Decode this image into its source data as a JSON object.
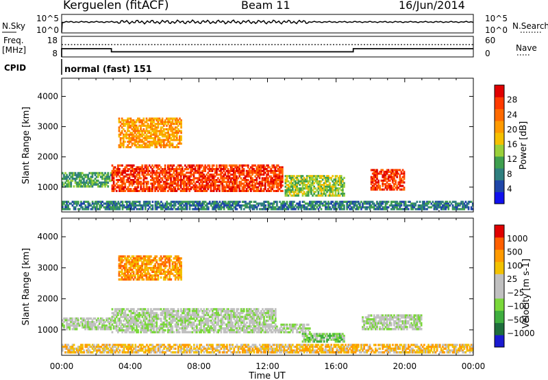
{
  "header": {
    "station": "Kerguelen (fitACF)",
    "beam": "Beam 11",
    "date": "16/Jun/2014"
  },
  "noise_panel": {
    "left_label": "N.Sky",
    "right_label": "N.Search",
    "left_ticks": [
      "10^5",
      "10^0"
    ],
    "right_ticks": [
      "10^5",
      "10^0"
    ]
  },
  "freq_panel": {
    "left_label_1": "Freq.",
    "left_label_2": "[MHz]",
    "right_label": "Nave",
    "left_ticks": [
      "18",
      "8"
    ],
    "right_ticks": [
      "60",
      "0"
    ],
    "freq_series_mhz": [
      {
        "t": 0.0,
        "v": 8
      },
      {
        "t": 0.0,
        "v": 12
      },
      {
        "t": 2.9,
        "v": 12
      },
      {
        "t": 2.9,
        "v": 10.5
      },
      {
        "t": 17.0,
        "v": 10.5
      },
      {
        "t": 17.0,
        "v": 12
      },
      {
        "t": 24.0,
        "v": 12
      }
    ]
  },
  "cpid": {
    "label": "CPID",
    "value": "normal (fast) 151"
  },
  "axes": {
    "ylabel": "Slant Range [km]",
    "xlabel": "Time UT",
    "xticks": [
      "00:00",
      "04:00",
      "08:00",
      "12:00",
      "16:00",
      "20:00",
      "00:00"
    ],
    "yticks": [
      "4000",
      "3000",
      "2000",
      "1000"
    ]
  },
  "chart_data": [
    {
      "type": "heatmap",
      "title": "",
      "xlabel": "",
      "ylabel": "Slant Range [km]",
      "xlim_hours": [
        0,
        24
      ],
      "ylim_km": [
        180,
        4600
      ],
      "colorbar": {
        "label": "Power [dB]",
        "ticks": [
          "28",
          "24",
          "20",
          "16",
          "12",
          "8",
          "4"
        ],
        "colors": [
          "#1010ee",
          "#1f46a8",
          "#2f7f7f",
          "#3f9f4f",
          "#9ad03a",
          "#f5c000",
          "#ff9a00",
          "#ff6a00",
          "#ff3a00",
          "#e00000"
        ]
      },
      "regions": [
        {
          "t0": 0.0,
          "t1": 2.9,
          "r0": 1000,
          "r1": 1500,
          "level": 3
        },
        {
          "t0": 2.9,
          "t1": 12.9,
          "r0": 850,
          "r1": 1750,
          "level": 8
        },
        {
          "t0": 3.3,
          "t1": 7.0,
          "r0": 2300,
          "r1": 3300,
          "level": 6
        },
        {
          "t0": 13.0,
          "t1": 16.5,
          "r0": 700,
          "r1": 1400,
          "level": 4
        },
        {
          "t0": 18.0,
          "t1": 20.0,
          "r0": 900,
          "r1": 1600,
          "level": 8
        },
        {
          "t0": 0.0,
          "t1": 24.0,
          "r0": 250,
          "r1": 550,
          "level": 2
        }
      ]
    },
    {
      "type": "heatmap",
      "title": "",
      "xlabel": "Time UT",
      "ylabel": "Slant Range [km]",
      "xlim_hours": [
        0,
        24
      ],
      "ylim_km": [
        180,
        4600
      ],
      "colorbar": {
        "label": "Velocity [m s-1]",
        "ticks": [
          "1000",
          "500",
          "100",
          "25",
          "−25",
          "−100",
          "−500",
          "−1000"
        ],
        "colors": [
          "#1a1ad0",
          "#1e6e3c",
          "#3fae3f",
          "#7ad83a",
          "#c0c0c0",
          "#c0c0c0",
          "#f2c100",
          "#ff9a00",
          "#ff6000",
          "#e00000"
        ]
      },
      "regions": [
        {
          "t0": 0.0,
          "t1": 2.9,
          "r0": 1000,
          "r1": 1400,
          "level": 4
        },
        {
          "t0": 2.9,
          "t1": 12.5,
          "r0": 900,
          "r1": 1700,
          "level": 4
        },
        {
          "t0": 12.5,
          "t1": 14.5,
          "r0": 900,
          "r1": 1200,
          "level": 4
        },
        {
          "t0": 3.3,
          "t1": 7.0,
          "r0": 2600,
          "r1": 3400,
          "level": 7
        },
        {
          "t0": 14.0,
          "t1": 16.5,
          "r0": 600,
          "r1": 900,
          "level": 3
        },
        {
          "t0": 17.5,
          "t1": 21.0,
          "r0": 1000,
          "r1": 1500,
          "level": 4
        },
        {
          "t0": 0.0,
          "t1": 24.0,
          "r0": 250,
          "r1": 550,
          "level": 6
        }
      ]
    }
  ]
}
